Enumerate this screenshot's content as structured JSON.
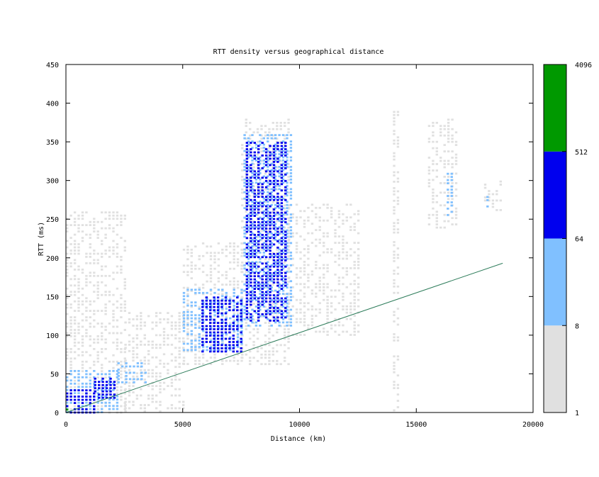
{
  "chart_data": {
    "type": "heatmap",
    "title": "RTT density versus geographical distance",
    "xlabel": "Distance (km)",
    "ylabel": "RTT (ms)",
    "xlim": [
      0,
      20000
    ],
    "ylim": [
      0,
      450
    ],
    "xticks": [
      0,
      5000,
      10000,
      15000,
      20000
    ],
    "yticks": [
      0,
      50,
      100,
      150,
      200,
      250,
      300,
      350,
      400,
      450
    ],
    "colorbar": {
      "scale": "log",
      "range": [
        1,
        4096
      ],
      "tick_labels": [
        "1",
        "8",
        "64",
        "512",
        "4096"
      ],
      "bands": [
        {
          "from": 1,
          "to": 8,
          "color": "#e0e0e0"
        },
        {
          "from": 8,
          "to": 64,
          "color": "#80c0ff"
        },
        {
          "from": 64,
          "to": 512,
          "color": "#0000ee"
        },
        {
          "from": 512,
          "to": 4096,
          "color": "#009900"
        }
      ]
    },
    "reference_line": {
      "color": "#2e7d5b",
      "points": [
        [
          0,
          0
        ],
        [
          18700,
          193
        ]
      ]
    },
    "density_regions": [
      {
        "level": 1,
        "x": [
          0,
          2500
        ],
        "y": [
          0,
          260
        ]
      },
      {
        "level": 1,
        "x": [
          2500,
          5000
        ],
        "y": [
          0,
          130
        ]
      },
      {
        "level": 1,
        "x": [
          5000,
          7500
        ],
        "y": [
          60,
          220
        ]
      },
      {
        "level": 1,
        "x": [
          7500,
          9500
        ],
        "y": [
          60,
          380
        ]
      },
      {
        "level": 1,
        "x": [
          9500,
          12500
        ],
        "y": [
          100,
          270
        ]
      },
      {
        "level": 1,
        "x": [
          14000,
          14200
        ],
        "y": [
          0,
          390
        ]
      },
      {
        "level": 1,
        "x": [
          15500,
          16800
        ],
        "y": [
          240,
          380
        ]
      },
      {
        "level": 1,
        "x": [
          17900,
          18700
        ],
        "y": [
          260,
          300
        ]
      },
      {
        "level": 2,
        "x": [
          0,
          2200
        ],
        "y": [
          0,
          55
        ]
      },
      {
        "level": 2,
        "x": [
          2200,
          3500
        ],
        "y": [
          40,
          65
        ]
      },
      {
        "level": 2,
        "x": [
          5000,
          7500
        ],
        "y": [
          80,
          160
        ]
      },
      {
        "level": 2,
        "x": [
          7600,
          9600
        ],
        "y": [
          110,
          360
        ]
      },
      {
        "level": 2,
        "x": [
          16300,
          16600
        ],
        "y": [
          250,
          310
        ]
      },
      {
        "level": 2,
        "x": [
          18000,
          18100
        ],
        "y": [
          260,
          280
        ]
      },
      {
        "level": 3,
        "x": [
          0,
          1200
        ],
        "y": [
          0,
          30
        ]
      },
      {
        "level": 3,
        "x": [
          1200,
          2100
        ],
        "y": [
          20,
          45
        ]
      },
      {
        "level": 3,
        "x": [
          5800,
          7600
        ],
        "y": [
          80,
          150
        ]
      },
      {
        "level": 3,
        "x": [
          7700,
          9400
        ],
        "y": [
          120,
          350
        ]
      },
      {
        "level": 4,
        "x": [
          0,
          150
        ],
        "y": [
          0,
          5
        ]
      }
    ]
  }
}
